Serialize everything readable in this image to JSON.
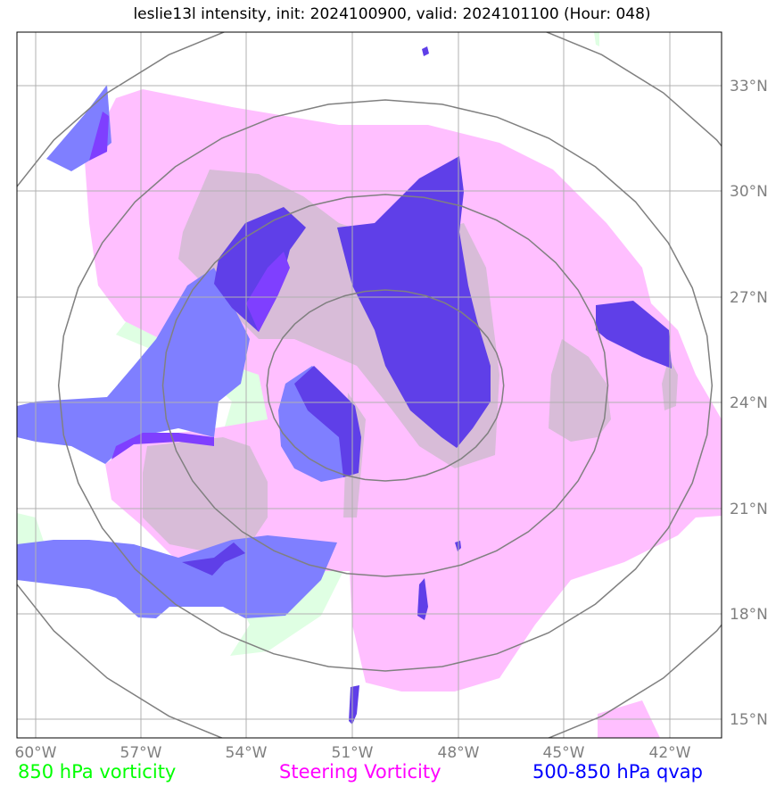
{
  "title": "leslie13l intensity, init: 2024100900, valid: 2024101100 (Hour: 048)",
  "lon_labels": [
    "60°W",
    "57°W",
    "54°W",
    "51°W",
    "48°W",
    "45°W",
    "42°W"
  ],
  "lat_labels": [
    "33°N",
    "30°N",
    "27°N",
    "24°N",
    "21°N",
    "18°N",
    "15°N"
  ],
  "legend": {
    "vort850": {
      "label": "850 hPa vorticity",
      "color": "#00ff00"
    },
    "steering": {
      "label": "Steering Vorticity",
      "color": "#ff00ff"
    },
    "qvap": {
      "label": "500-850 hPa qvap",
      "color": "#0000ff"
    }
  },
  "colors": {
    "vort850_fill": "#dfffe3",
    "steering_fill": "#ffbfff",
    "steering_dark_fill": "#d8bcd8",
    "qvap_light_fill": "#7f7fff",
    "qvap_dark_fill": "#5f3fe8",
    "qvap_violet_fill": "#7f3fff",
    "range_ring": "#808080",
    "grid": "#b0b0b0"
  }
}
